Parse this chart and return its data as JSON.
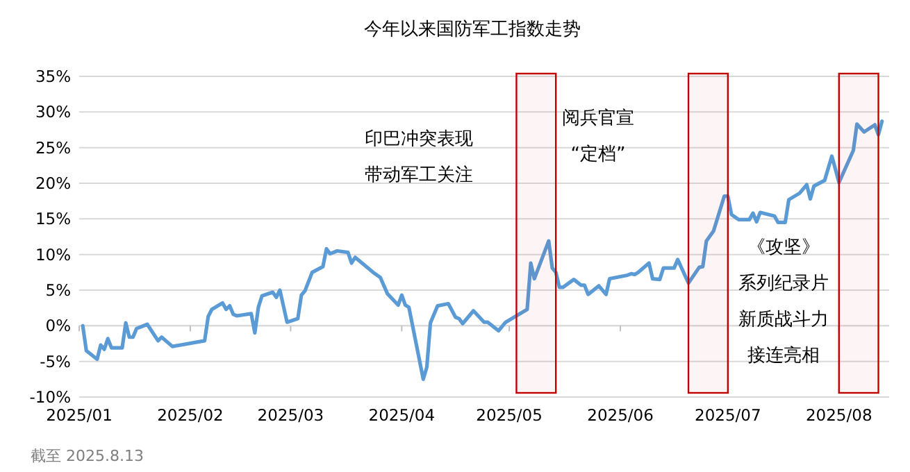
{
  "chart_data": {
    "type": "line",
    "title": "今年以来国防军工指数走势",
    "annotations": [
      "截至 2025.8.13"
    ],
    "xlim": [
      "2025-01-01",
      "2025-08-15"
    ],
    "xticks": [
      {
        "value": "2025-01-01",
        "label": "2025/01"
      },
      {
        "value": "2025-02-01",
        "label": "2025/02"
      },
      {
        "value": "2025-03-01",
        "label": "2025/03"
      },
      {
        "value": "2025-04-01",
        "label": "2025/04"
      },
      {
        "value": "2025-05-01",
        "label": "2025/05"
      },
      {
        "value": "2025-06-01",
        "label": "2025/06"
      },
      {
        "value": "2025-07-01",
        "label": "2025/07"
      },
      {
        "value": "2025-08-01",
        "label": "2025/08"
      }
    ],
    "ylim": [
      -10,
      35
    ],
    "yticks": [
      {
        "value": -10,
        "label": "-10%"
      },
      {
        "value": -5,
        "label": "-5%"
      },
      {
        "value": 0,
        "label": "0%"
      },
      {
        "value": 5,
        "label": "5%"
      },
      {
        "value": 10,
        "label": "10%"
      },
      {
        "value": 15,
        "label": "15%"
      },
      {
        "value": 20,
        "label": "20%"
      },
      {
        "value": 25,
        "label": "25%"
      },
      {
        "value": 30,
        "label": "30%"
      },
      {
        "value": 35,
        "label": "35%"
      }
    ],
    "grid": "y",
    "marker": "none",
    "line_style": "solid",
    "bands": [
      {
        "axis": "x",
        "from": "2025-05-03",
        "to": "2025-05-14",
        "color": "#c00000",
        "label": "印巴冲突表现带动军工关注"
      },
      {
        "axis": "x",
        "from": "2025-06-20",
        "to": "2025-07-01",
        "color": "#c00000",
        "label": "阅兵官宣“定档”"
      },
      {
        "axis": "x",
        "from": "2025-08-01",
        "to": "2025-08-12",
        "color": "#c00000",
        "label": "《攻坚》系列纪录片新质战斗力接连亮相"
      }
    ],
    "x": [
      "2025-01-02",
      "2025-01-03",
      "2025-01-06",
      "2025-01-07",
      "2025-01-08",
      "2025-01-09",
      "2025-01-10",
      "2025-01-13",
      "2025-01-14",
      "2025-01-15",
      "2025-01-16",
      "2025-01-17",
      "2025-01-20",
      "2025-01-23",
      "2025-01-24",
      "2025-01-27",
      "2025-02-05",
      "2025-02-06",
      "2025-02-07",
      "2025-02-10",
      "2025-02-11",
      "2025-02-12",
      "2025-02-13",
      "2025-02-14",
      "2025-02-18",
      "2025-02-19",
      "2025-02-20",
      "2025-02-21",
      "2025-02-24",
      "2025-02-25",
      "2025-02-26",
      "2025-02-28",
      "2025-03-03",
      "2025-03-04",
      "2025-03-05",
      "2025-03-07",
      "2025-03-10",
      "2025-03-11",
      "2025-03-12",
      "2025-03-14",
      "2025-03-17",
      "2025-03-18",
      "2025-03-19",
      "2025-03-24",
      "2025-03-26",
      "2025-03-28",
      "2025-03-31",
      "2025-04-01",
      "2025-04-02",
      "2025-04-03",
      "2025-04-07",
      "2025-04-08",
      "2025-04-09",
      "2025-04-11",
      "2025-04-14",
      "2025-04-16",
      "2025-04-17",
      "2025-04-18",
      "2025-04-21",
      "2025-04-24",
      "2025-04-25",
      "2025-04-28",
      "2025-04-30",
      "2025-05-06",
      "2025-05-07",
      "2025-05-08",
      "2025-05-12",
      "2025-05-13",
      "2025-05-14",
      "2025-05-15",
      "2025-05-16",
      "2025-05-19",
      "2025-05-21",
      "2025-05-22",
      "2025-05-23",
      "2025-05-26",
      "2025-05-28",
      "2025-05-29",
      "2025-06-03",
      "2025-06-04",
      "2025-06-05",
      "2025-06-06",
      "2025-06-09",
      "2025-06-10",
      "2025-06-12",
      "2025-06-13",
      "2025-06-16",
      "2025-06-17",
      "2025-06-20",
      "2025-06-23",
      "2025-06-24",
      "2025-06-25",
      "2025-06-27",
      "2025-06-30",
      "2025-07-01",
      "2025-07-02",
      "2025-07-04",
      "2025-07-07",
      "2025-07-08",
      "2025-07-09",
      "2025-07-10",
      "2025-07-14",
      "2025-07-15",
      "2025-07-17",
      "2025-07-18",
      "2025-07-21",
      "2025-07-23",
      "2025-07-24",
      "2025-07-25",
      "2025-07-28",
      "2025-07-30",
      "2025-07-31",
      "2025-08-01",
      "2025-08-05",
      "2025-08-06",
      "2025-08-08",
      "2025-08-11",
      "2025-08-12",
      "2025-08-13"
    ],
    "series": [
      {
        "color": "#5b9bd5",
        "values": [
          0,
          -3.5,
          -4.7,
          -2.7,
          -3.3,
          -1.8,
          -3.1,
          -3.1,
          0.4,
          -1.6,
          -1.6,
          -0.4,
          0.2,
          -2.1,
          -1.6,
          -2.9,
          -2.1,
          1.3,
          2.3,
          3.2,
          2.3,
          2.8,
          1.6,
          1.4,
          1.7,
          -1.0,
          2.6,
          4.2,
          4.7,
          4.0,
          5.0,
          0.5,
          1.0,
          4.3,
          4.9,
          7.5,
          8.3,
          10.8,
          10.1,
          10.5,
          10.3,
          8.8,
          9.6,
          7.5,
          6.8,
          4.5,
          2.9,
          4.3,
          2.9,
          2.6,
          -7.5,
          -5.8,
          0.4,
          2.8,
          3.1,
          1.2,
          1.0,
          0.3,
          2.1,
          0.5,
          0.5,
          -0.7,
          0.5,
          2.3,
          8.8,
          6.6,
          11.9,
          8.1,
          7.5,
          5.4,
          5.4,
          6.5,
          5.7,
          5.7,
          4.4,
          5.6,
          4.4,
          6.6,
          7.1,
          7.3,
          7.2,
          7.5,
          8.8,
          6.6,
          6.5,
          8.1,
          8.1,
          9.3,
          6.0,
          8.2,
          8.3,
          11.9,
          13.3,
          18.2,
          18.2,
          15.6,
          14.9,
          14.9,
          15.8,
          14.6,
          15.9,
          15.4,
          14.5,
          14.5,
          17.7,
          18.6,
          19.8,
          17.8,
          19.6,
          20.4,
          23.8,
          22.0,
          20.1,
          24.6,
          28.3,
          27.2,
          28.2,
          26.8,
          28.7
        ]
      }
    ]
  }
}
